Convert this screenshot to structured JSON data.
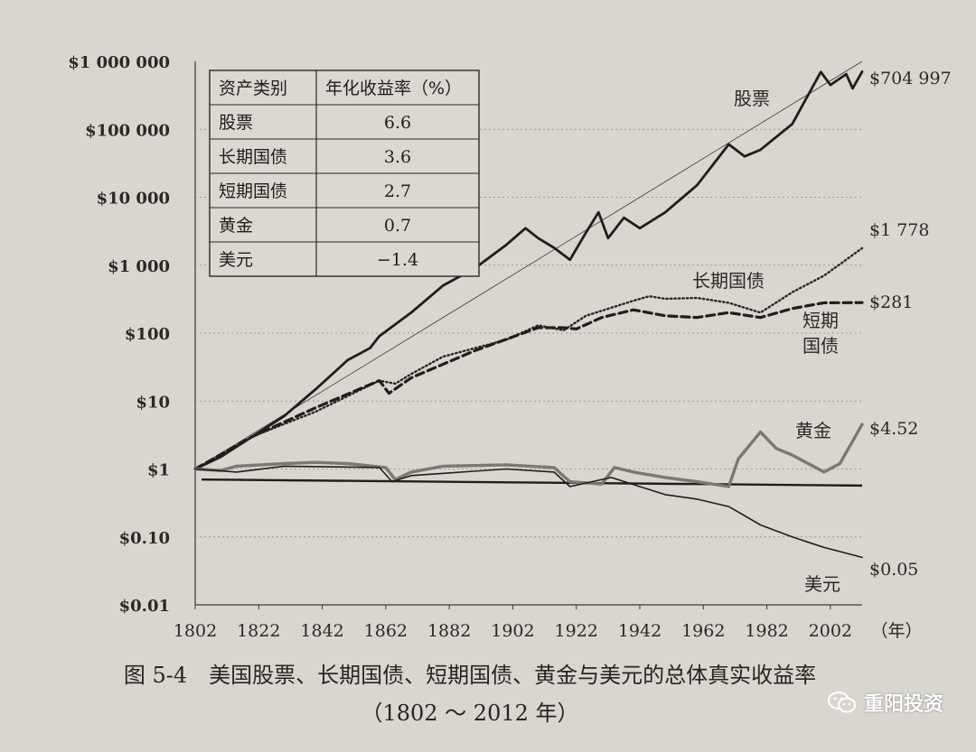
{
  "chart_data": {
    "type": "line",
    "y_scale": "log",
    "ylim": [
      0.01,
      1000000
    ],
    "xlim": [
      1802,
      2012
    ],
    "x_ticks": [
      "1802",
      "1822",
      "1842",
      "1862",
      "1882",
      "1902",
      "1922",
      "1942",
      "1962",
      "1982",
      "2002"
    ],
    "x_unit": "（年）",
    "y_ticks": [
      {
        "value": 1000000,
        "label": "$1 000 000"
      },
      {
        "value": 100000,
        "label": "$100 000"
      },
      {
        "value": 10000,
        "label": "$10 000"
      },
      {
        "value": 1000,
        "label": "$1 000"
      },
      {
        "value": 100,
        "label": "$100"
      },
      {
        "value": 10,
        "label": "$10"
      },
      {
        "value": 1,
        "label": "$1"
      },
      {
        "value": 0.1,
        "label": "$0.10"
      },
      {
        "value": 0.01,
        "label": "$0.01"
      }
    ],
    "grid": "horizontal-dashed",
    "series": [
      {
        "name": "股票",
        "style": "solid-bold",
        "color": "#1f1e1c",
        "end_label": "$704 997",
        "points": [
          [
            1802,
            1
          ],
          [
            1810,
            1.5
          ],
          [
            1820,
            3
          ],
          [
            1830,
            6
          ],
          [
            1840,
            15
          ],
          [
            1850,
            40
          ],
          [
            1857,
            60
          ],
          [
            1860,
            90
          ],
          [
            1870,
            200
          ],
          [
            1880,
            500
          ],
          [
            1890,
            900
          ],
          [
            1900,
            2000
          ],
          [
            1906,
            3500
          ],
          [
            1910,
            2500
          ],
          [
            1915,
            1800
          ],
          [
            1920,
            1200
          ],
          [
            1925,
            3000
          ],
          [
            1929,
            6000
          ],
          [
            1932,
            2500
          ],
          [
            1937,
            5000
          ],
          [
            1942,
            3500
          ],
          [
            1950,
            6000
          ],
          [
            1960,
            15000
          ],
          [
            1965,
            30000
          ],
          [
            1970,
            60000
          ],
          [
            1975,
            40000
          ],
          [
            1980,
            50000
          ],
          [
            1990,
            120000
          ],
          [
            1999,
            700000
          ],
          [
            2002,
            450000
          ],
          [
            2007,
            650000
          ],
          [
            2009,
            400000
          ],
          [
            2012,
            704997
          ]
        ]
      },
      {
        "name": "长期国债",
        "style": "dotted",
        "color": "#2a2926",
        "end_label": "$1 778",
        "points": [
          [
            1802,
            1
          ],
          [
            1820,
            3
          ],
          [
            1840,
            7
          ],
          [
            1860,
            20
          ],
          [
            1865,
            18
          ],
          [
            1870,
            25
          ],
          [
            1880,
            45
          ],
          [
            1900,
            80
          ],
          [
            1910,
            130
          ],
          [
            1918,
            110
          ],
          [
            1925,
            180
          ],
          [
            1940,
            300
          ],
          [
            1945,
            350
          ],
          [
            1950,
            320
          ],
          [
            1960,
            330
          ],
          [
            1970,
            280
          ],
          [
            1980,
            200
          ],
          [
            1990,
            400
          ],
          [
            2000,
            700
          ],
          [
            2012,
            1778
          ]
        ]
      },
      {
        "name": "短期国债",
        "style": "dashed-bold",
        "color": "#1f1e1c",
        "end_label": "$281",
        "points": [
          [
            1802,
            1
          ],
          [
            1820,
            3
          ],
          [
            1840,
            8
          ],
          [
            1860,
            20
          ],
          [
            1863,
            13
          ],
          [
            1870,
            22
          ],
          [
            1890,
            55
          ],
          [
            1910,
            120
          ],
          [
            1918,
            120
          ],
          [
            1922,
            115
          ],
          [
            1930,
            170
          ],
          [
            1940,
            220
          ],
          [
            1950,
            180
          ],
          [
            1960,
            170
          ],
          [
            1970,
            200
          ],
          [
            1980,
            170
          ],
          [
            1990,
            230
          ],
          [
            2000,
            280
          ],
          [
            2012,
            281
          ]
        ]
      },
      {
        "name": "黄金",
        "style": "solid-gray",
        "color": "#7b7873",
        "end_label": "$4.52",
        "points": [
          [
            1802,
            1
          ],
          [
            1810,
            0.95
          ],
          [
            1815,
            1.1
          ],
          [
            1830,
            1.2
          ],
          [
            1840,
            1.25
          ],
          [
            1850,
            1.2
          ],
          [
            1862,
            1.05
          ],
          [
            1865,
            0.7
          ],
          [
            1870,
            0.9
          ],
          [
            1880,
            1.1
          ],
          [
            1900,
            1.15
          ],
          [
            1915,
            1.05
          ],
          [
            1920,
            0.65
          ],
          [
            1930,
            0.6
          ],
          [
            1934,
            1.05
          ],
          [
            1940,
            0.9
          ],
          [
            1950,
            0.75
          ],
          [
            1960,
            0.65
          ],
          [
            1970,
            0.55
          ],
          [
            1973,
            1.4
          ],
          [
            1980,
            3.5
          ],
          [
            1985,
            2
          ],
          [
            1990,
            1.6
          ],
          [
            2000,
            0.9
          ],
          [
            2005,
            1.2
          ],
          [
            2012,
            4.52
          ]
        ]
      },
      {
        "name": "美元",
        "style": "solid-thin",
        "color": "#1f1e1c",
        "end_label": "$0.05",
        "points": [
          [
            1802,
            1
          ],
          [
            1815,
            0.9
          ],
          [
            1830,
            1.1
          ],
          [
            1860,
            1.05
          ],
          [
            1864,
            0.65
          ],
          [
            1870,
            0.8
          ],
          [
            1900,
            1.0
          ],
          [
            1915,
            0.9
          ],
          [
            1920,
            0.55
          ],
          [
            1933,
            0.75
          ],
          [
            1942,
            0.55
          ],
          [
            1950,
            0.42
          ],
          [
            1960,
            0.36
          ],
          [
            1970,
            0.28
          ],
          [
            1980,
            0.15
          ],
          [
            1990,
            0.1
          ],
          [
            2000,
            0.07
          ],
          [
            2012,
            0.05
          ]
        ]
      }
    ],
    "inline_labels": {
      "stocks": "股票",
      "bonds": "长期国债",
      "bills_line1": "短期",
      "bills_line2": "国债",
      "gold": "黄金",
      "dollar": "美元"
    },
    "table": {
      "headers": [
        "资产类别",
        "年化收益率（%）"
      ],
      "rows": [
        [
          "股票",
          "6.6"
        ],
        [
          "长期国债",
          "3.6"
        ],
        [
          "短期国债",
          "2.7"
        ],
        [
          "黄金",
          "0.7"
        ],
        [
          "美元",
          "−1.4"
        ]
      ]
    }
  },
  "caption": {
    "title": "图 5-4　美国股票、长期国债、短期国债、黄金与美元的总体真实收益率",
    "range": "（1802 ～ 2012 年）"
  },
  "watermark": {
    "text": "重阳投资",
    "icon": "wechat-icon"
  }
}
